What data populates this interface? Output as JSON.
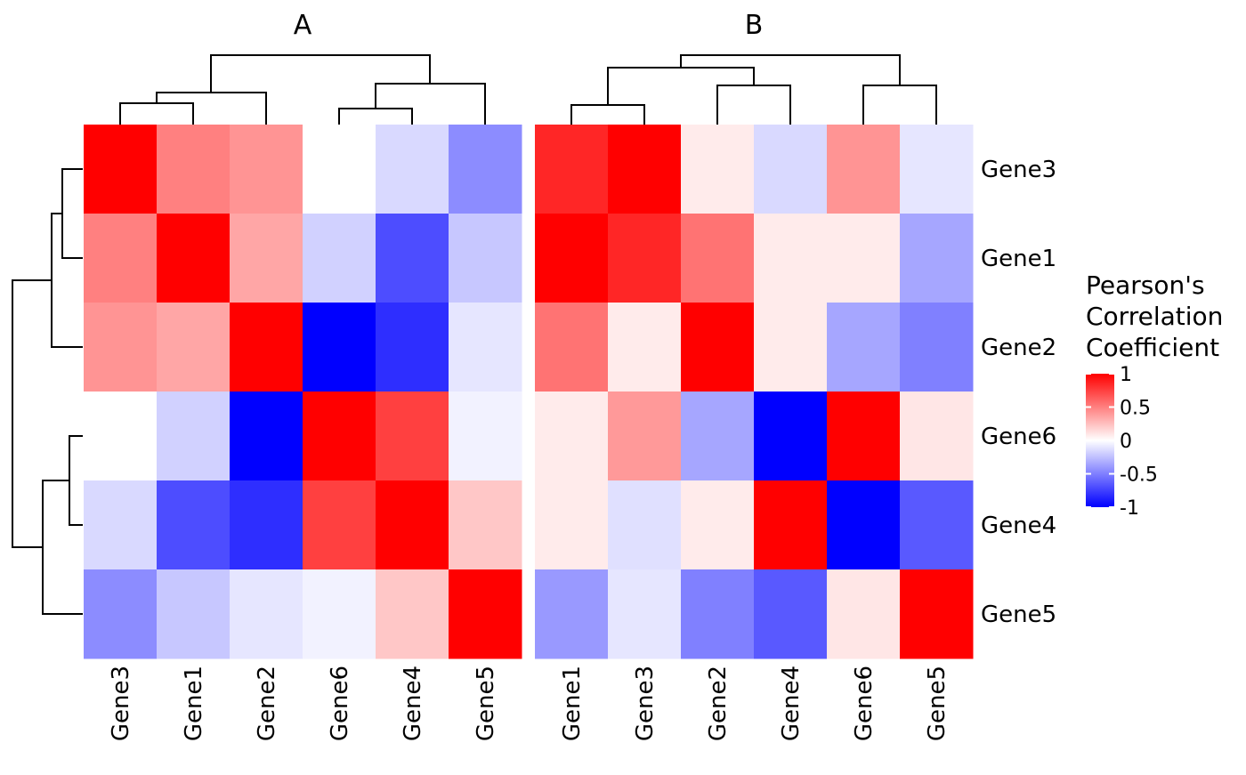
{
  "chart_data": {
    "type": "heatmap",
    "colors": {
      "low": "#0000FF",
      "mid": "#FFFFFF",
      "high": "#FF0000"
    },
    "color_range": [
      -1,
      1
    ],
    "legend": {
      "title_lines": [
        "Pearson's",
        "Correlation",
        "Coefficient"
      ],
      "ticks": [
        1,
        0.5,
        0,
        -0.5,
        -1
      ],
      "tick_labels": [
        "1",
        "0.5",
        "0",
        "-0.5",
        "-1"
      ],
      "placement": "right"
    },
    "rows": [
      "Gene3",
      "Gene1",
      "Gene2",
      "Gene6",
      "Gene4",
      "Gene5"
    ],
    "panels": [
      {
        "title": "A",
        "columns": [
          "Gene3",
          "Gene1",
          "Gene2",
          "Gene6",
          "Gene4",
          "Gene5"
        ],
        "values": [
          [
            1.0,
            0.5,
            0.42,
            0.0,
            -0.15,
            -0.45
          ],
          [
            0.5,
            1.0,
            0.35,
            -0.18,
            -0.7,
            -0.22
          ],
          [
            0.42,
            0.35,
            1.0,
            -1.0,
            -0.82,
            -0.1
          ],
          [
            0.0,
            -0.18,
            -1.0,
            1.0,
            0.75,
            -0.05
          ],
          [
            -0.15,
            -0.7,
            -0.82,
            0.75,
            1.0,
            0.22
          ],
          [
            -0.45,
            -0.22,
            -0.1,
            -0.05,
            0.22,
            1.0
          ]
        ]
      },
      {
        "title": "B",
        "columns": [
          "Gene1",
          "Gene3",
          "Gene2",
          "Gene4",
          "Gene6",
          "Gene5"
        ],
        "values": [
          [
            0.85,
            1.0,
            0.08,
            -0.15,
            0.42,
            -0.1
          ],
          [
            1.0,
            0.85,
            0.55,
            0.08,
            0.08,
            -0.35
          ],
          [
            0.55,
            0.08,
            1.0,
            0.08,
            -0.35,
            -0.5
          ],
          [
            0.08,
            0.4,
            -0.35,
            -1.0,
            1.0,
            0.1
          ],
          [
            0.08,
            -0.12,
            0.08,
            1.0,
            -1.0,
            -0.65
          ],
          [
            -0.4,
            -0.1,
            -0.5,
            -0.65,
            0.1,
            1.0
          ]
        ]
      }
    ]
  }
}
